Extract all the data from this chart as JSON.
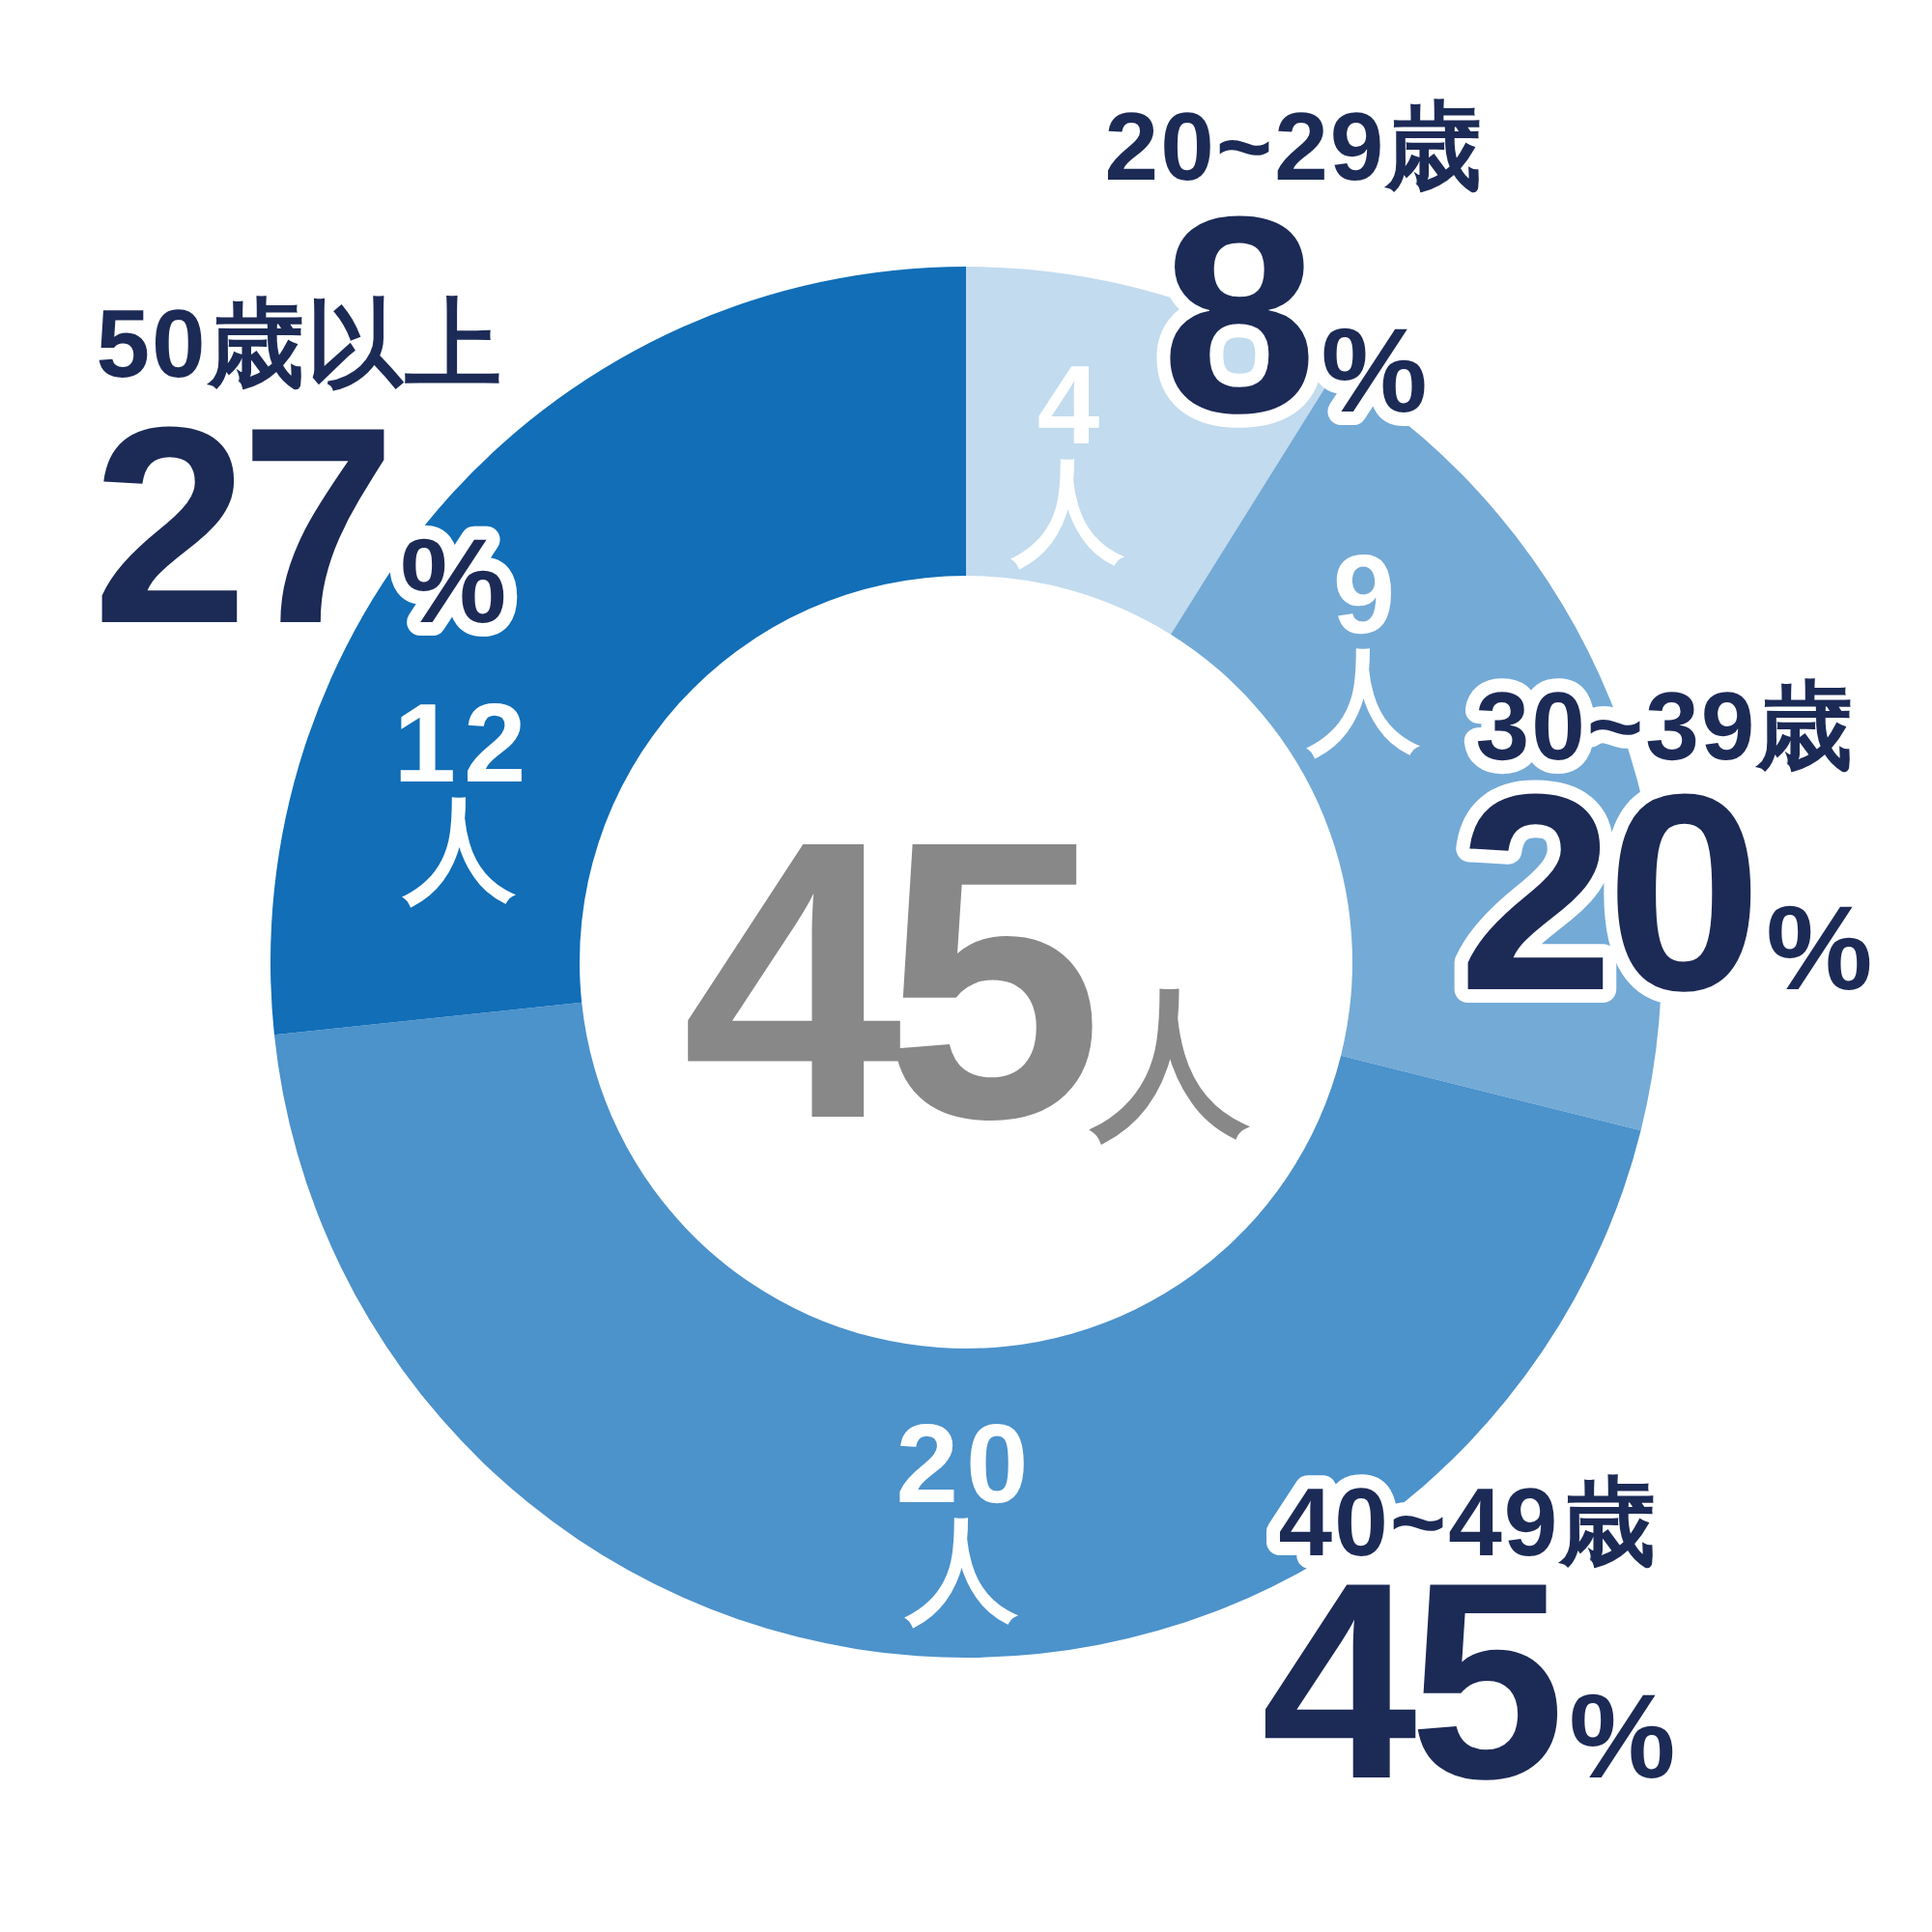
{
  "chart_data": {
    "type": "donut",
    "categories": [
      "20~29歳",
      "30~39歳",
      "40~49歳",
      "50歳以上"
    ],
    "values": [
      4,
      9,
      20,
      12
    ],
    "colors": [
      "#c2dbee",
      "#74aad6",
      "#4c92cb",
      "#116eb7"
    ],
    "value_labels": [
      "4\n人",
      "9\n人",
      "20\n人",
      "12\n人"
    ],
    "annotations": [
      "45人",
      {
        "text": "8%",
        "x": "20~29歳"
      },
      {
        "text": "20%",
        "x": "30~39歳"
      },
      {
        "text": "45%",
        "x": "40~49歳"
      },
      {
        "text": "27%",
        "x": "50歳以上"
      }
    ]
  }
}
